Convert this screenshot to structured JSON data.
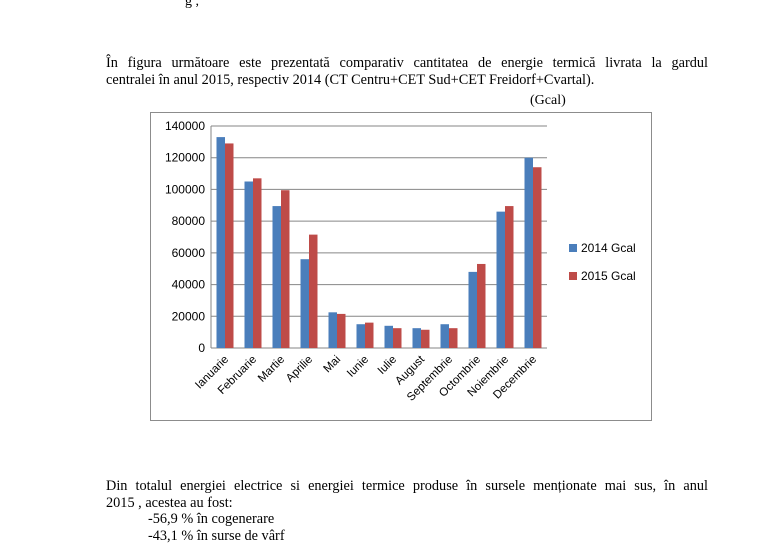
{
  "top_fragment": "g                          ,",
  "intro": {
    "line1": "În figura următoare este prezentată comparativ cantitatea de energie termică livrata la gardul",
    "line2": "centralei în anul 2015, respectiv 2014 (CT Centru+CET Sud+CET Freidorf+Cvartal)."
  },
  "unit_label": "(Gcal)",
  "chart_data": {
    "type": "bar",
    "title": "",
    "xlabel": "",
    "ylabel": "(Gcal)",
    "ylim": [
      0,
      140000
    ],
    "yticks": [
      "0",
      "20000",
      "40000",
      "60000",
      "80000",
      "100000",
      "120000",
      "140000"
    ],
    "grid": true,
    "legend_position": "right",
    "categories": [
      "Ianuarie",
      "Februarie",
      "Martie",
      "Aprilie",
      "Mai",
      "Iunie",
      "Iulie",
      "August",
      "Septembrie",
      "Octombrie",
      "Noiembrie",
      "Decembrie"
    ],
    "series": [
      {
        "name": "2014 Gcal",
        "color": "#4a7ebb",
        "values": [
          133000,
          105000,
          89500,
          56000,
          22500,
          15000,
          14000,
          12500,
          15000,
          48000,
          86000,
          120000
        ]
      },
      {
        "name": "2015 Gcal",
        "color": "#be4b48",
        "values": [
          129000,
          107000,
          99500,
          71500,
          21500,
          16000,
          12500,
          11500,
          12500,
          53000,
          89500,
          114000
        ]
      }
    ]
  },
  "conclusion": {
    "line1": "Din totalul energiei electrice si energiei termice produse în sursele menționate mai sus, în anul",
    "line2": "2015 , acestea au fost:"
  },
  "breakdown": [
    "-56,9 % în cogenerare",
    "-43,1 % în surse de vârf"
  ]
}
